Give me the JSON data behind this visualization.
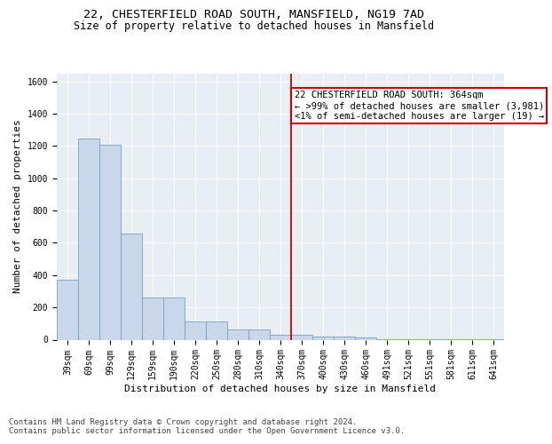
{
  "title1": "22, CHESTERFIELD ROAD SOUTH, MANSFIELD, NG19 7AD",
  "title2": "Size of property relative to detached houses in Mansfield",
  "xlabel": "Distribution of detached houses by size in Mansfield",
  "ylabel": "Number of detached properties",
  "categories": [
    "39sqm",
    "69sqm",
    "99sqm",
    "129sqm",
    "159sqm",
    "190sqm",
    "220sqm",
    "250sqm",
    "280sqm",
    "310sqm",
    "340sqm",
    "370sqm",
    "400sqm",
    "430sqm",
    "460sqm",
    "491sqm",
    "521sqm",
    "551sqm",
    "581sqm",
    "611sqm",
    "641sqm"
  ],
  "values": [
    370,
    1245,
    1205,
    655,
    260,
    260,
    115,
    115,
    65,
    65,
    30,
    30,
    20,
    20,
    15,
    5,
    5,
    5,
    5,
    5,
    5
  ],
  "bar_color": "#c8d8ea",
  "bar_edge_color": "#7aa0be",
  "vline_color": "#cc0000",
  "vline_x": 10.5,
  "annotation_text": "22 CHESTERFIELD ROAD SOUTH: 364sqm\n← >99% of detached houses are smaller (3,981)\n<1% of semi-detached houses are larger (19) →",
  "annotation_box_facecolor": "white",
  "annotation_box_edgecolor": "#cc0000",
  "ylim": [
    0,
    1650
  ],
  "yticks": [
    0,
    200,
    400,
    600,
    800,
    1000,
    1200,
    1400,
    1600
  ],
  "plot_bg": "#e8eef4",
  "footer_text": "Contains HM Land Registry data © Crown copyright and database right 2024.\nContains public sector information licensed under the Open Government Licence v3.0.",
  "title1_fontsize": 9.5,
  "title2_fontsize": 8.5,
  "tick_fontsize": 7,
  "ylabel_fontsize": 8,
  "xlabel_fontsize": 8,
  "annotation_fontsize": 7.5,
  "footer_fontsize": 6.5
}
